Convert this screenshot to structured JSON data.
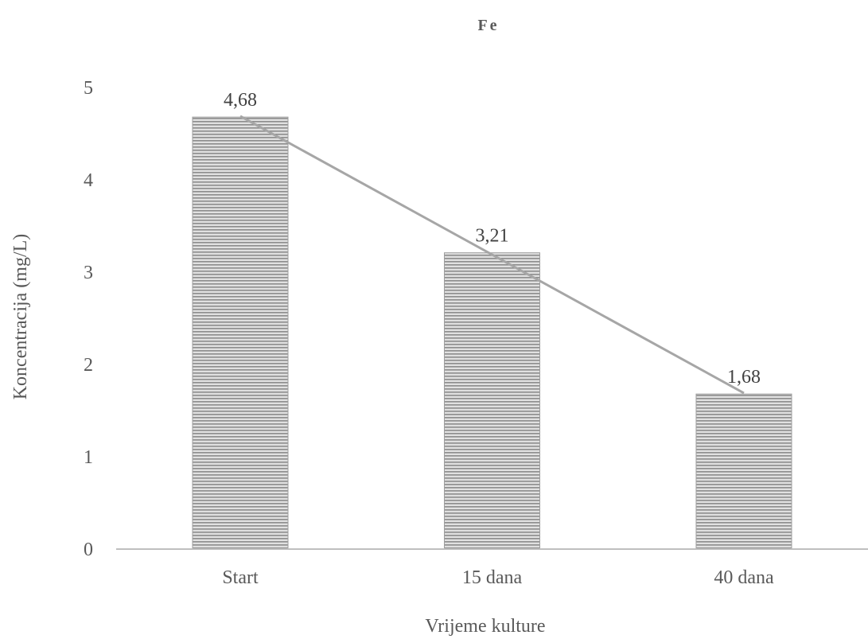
{
  "chart_data": {
    "type": "bar",
    "title": "Fe",
    "xlabel": "Vrijeme kulture",
    "ylabel": "Koncentracija (mg/L)",
    "categories": [
      "Start",
      "15 dana",
      "40 dana"
    ],
    "values": [
      4.68,
      3.21,
      1.68
    ],
    "data_labels": [
      "4,68",
      "3,21",
      "1,68"
    ],
    "ylim": [
      0,
      5
    ],
    "yticks": [
      0,
      1,
      2,
      3,
      4,
      5
    ],
    "grid": false,
    "legend": "none",
    "overlay": {
      "type": "line",
      "style": "linear-trendline",
      "color": "#a6a6a6"
    },
    "colors": {
      "bar_fill": "#d9d9d9",
      "bar_hatch": "#8c8c8c",
      "axis": "#bfbfbf",
      "text": "#595959"
    }
  }
}
